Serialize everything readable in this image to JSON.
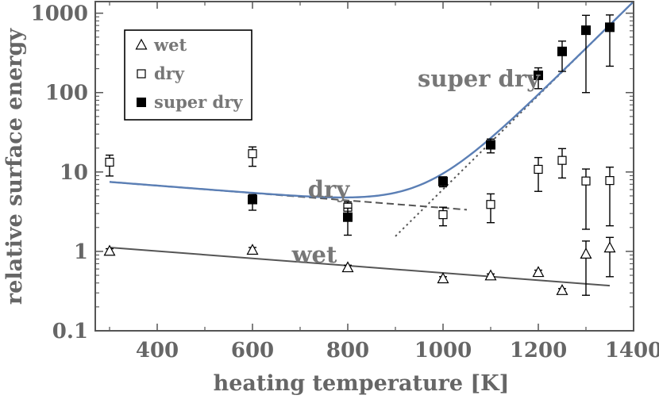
{
  "chart_data": {
    "type": "scatter",
    "title": "",
    "xlabel": "heating temperature [K]",
    "ylabel": "relative surface energy",
    "xlim": [
      270,
      1400
    ],
    "ylim": [
      0.1,
      1400
    ],
    "yscale": "log",
    "xticks": [
      400,
      600,
      800,
      1000,
      1200,
      1400
    ],
    "yticks": [
      {
        "value": 0.1,
        "label": "0.1"
      },
      {
        "value": 1,
        "label": "1"
      },
      {
        "value": 10,
        "label": "10"
      },
      {
        "value": 100,
        "label": "100"
      },
      {
        "value": 1000,
        "label": "1000"
      }
    ],
    "grid": false,
    "legend": {
      "position": "top-left",
      "entries": [
        {
          "name": "wet",
          "marker": "open-triangle"
        },
        {
          "name": "dry",
          "marker": "open-square"
        },
        {
          "name": "super dry",
          "marker": "filled-square"
        }
      ]
    },
    "series": [
      {
        "name": "wet",
        "marker": "open-triangle",
        "points": [
          {
            "x": 300,
            "y": 1.0,
            "lo": 0.92,
            "hi": 1.08
          },
          {
            "x": 600,
            "y": 1.03,
            "lo": 0.95,
            "hi": 1.12
          },
          {
            "x": 800,
            "y": 0.62,
            "lo": 0.58,
            "hi": 0.67
          },
          {
            "x": 1000,
            "y": 0.45,
            "lo": 0.42,
            "hi": 0.48
          },
          {
            "x": 1100,
            "y": 0.49,
            "lo": 0.46,
            "hi": 0.52
          },
          {
            "x": 1200,
            "y": 0.54,
            "lo": 0.5,
            "hi": 0.58
          },
          {
            "x": 1250,
            "y": 0.32,
            "lo": 0.3,
            "hi": 0.34
          },
          {
            "x": 1300,
            "y": 0.92,
            "lo": 0.28,
            "hi": 1.35
          },
          {
            "x": 1350,
            "y": 1.1,
            "lo": 0.48,
            "hi": 1.5
          }
        ]
      },
      {
        "name": "dry",
        "marker": "open-square",
        "points": [
          {
            "x": 300,
            "y": 13.3,
            "lo": 8.9,
            "hi": 16.3
          },
          {
            "x": 600,
            "y": 17.0,
            "lo": 11.8,
            "hi": 20.7
          },
          {
            "x": 800,
            "y": 3.6,
            "lo": 3.0,
            "hi": 4.2
          },
          {
            "x": 1000,
            "y": 2.9,
            "lo": 2.1,
            "hi": 3.6
          },
          {
            "x": 1100,
            "y": 3.9,
            "lo": 2.3,
            "hi": 5.3
          },
          {
            "x": 1200,
            "y": 10.8,
            "lo": 5.7,
            "hi": 15.2
          },
          {
            "x": 1250,
            "y": 14.0,
            "lo": 8.4,
            "hi": 19.7
          },
          {
            "x": 1300,
            "y": 7.7,
            "lo": 1.9,
            "hi": 10.9
          },
          {
            "x": 1350,
            "y": 7.8,
            "lo": 2.1,
            "hi": 11.5
          }
        ]
      },
      {
        "name": "super dry",
        "marker": "filled-square",
        "points": [
          {
            "x": 600,
            "y": 4.5,
            "lo": 3.3,
            "hi": 5.2
          },
          {
            "x": 800,
            "y": 2.7,
            "lo": 1.6,
            "hi": 3.5
          },
          {
            "x": 1000,
            "y": 7.6,
            "lo": 6.5,
            "hi": 8.7
          },
          {
            "x": 1100,
            "y": 22.0,
            "lo": 17.4,
            "hi": 26.0
          },
          {
            "x": 1200,
            "y": 165,
            "lo": 112,
            "hi": 205
          },
          {
            "x": 1250,
            "y": 330,
            "lo": 185,
            "hi": 445
          },
          {
            "x": 1300,
            "y": 610,
            "lo": 100,
            "hi": 940
          },
          {
            "x": 1350,
            "y": 665,
            "lo": 215,
            "hi": 950
          }
        ]
      }
    ],
    "fit_lines": [
      {
        "name": "wet",
        "style": "solid",
        "color": "#555555",
        "x": [
          300,
          1350
        ],
        "y": [
          1.12,
          0.37
        ]
      },
      {
        "name": "dry",
        "style": "dashed",
        "color": "#555555",
        "x": [
          300,
          1050
        ],
        "y": [
          7.5,
          3.35
        ]
      },
      {
        "name": "super dry",
        "style": "dotted",
        "color": "#555555",
        "x": [
          900,
          1400
        ],
        "y": [
          1.55,
          1400
        ]
      },
      {
        "name": "dry + super dry",
        "style": "solid",
        "color": "#5b7fb5",
        "x": [
          300,
          1400
        ],
        "sum_of": [
          "dry",
          "super dry"
        ]
      }
    ],
    "annotations": [
      {
        "text": "super dry",
        "x": 1075,
        "y": 120
      },
      {
        "text": "dry",
        "x": 760,
        "y": 4.8
      },
      {
        "text": "wet",
        "x": 730,
        "y": 0.72
      }
    ]
  }
}
